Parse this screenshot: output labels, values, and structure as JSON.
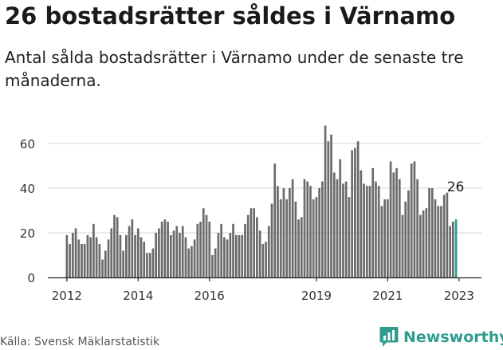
{
  "title": "26 bostadsrätter såldes i Värnamo",
  "subtitle": "Antal sålda bostadsrätter i Värnamo under de senaste tre månaderna.",
  "source": "Källa: Svensk Mäklarstatistik",
  "brand": {
    "name": "Newsworthy",
    "icon": "chat-chart-icon",
    "color": "#2e9d8e"
  },
  "chart_data": {
    "type": "bar",
    "title": "26 bostadsrätter såldes i Värnamo",
    "xlabel": "",
    "ylabel": "",
    "ylim": [
      0,
      70
    ],
    "yticks": [
      0,
      20,
      40,
      60
    ],
    "grid": true,
    "start": "2012-01",
    "xtick_labels": [
      "2012",
      "2014",
      "2016",
      "2019",
      "2021",
      "2023"
    ],
    "xtick_years": [
      2012,
      2014,
      2016,
      2019,
      2021,
      2023
    ],
    "bar_color": "#6b6b6b",
    "highlight_color": "#2a9d8f",
    "highlight_label": "26",
    "values": [
      19,
      15,
      20,
      22,
      17,
      15,
      15,
      19,
      18,
      24,
      18,
      15,
      8,
      12,
      17,
      22,
      28,
      27,
      19,
      12,
      19,
      23,
      26,
      19,
      22,
      18,
      16,
      11,
      11,
      13,
      20,
      22,
      25,
      26,
      25,
      19,
      21,
      23,
      20,
      23,
      18,
      13,
      14,
      17,
      24,
      25,
      31,
      28,
      25,
      10,
      13,
      20,
      24,
      18,
      17,
      20,
      24,
      19,
      19,
      19,
      24,
      28,
      31,
      31,
      27,
      21,
      15,
      16,
      23,
      33,
      51,
      41,
      35,
      40,
      35,
      40,
      44,
      34,
      26,
      27,
      44,
      43,
      41,
      35,
      36,
      40,
      43,
      68,
      61,
      64,
      47,
      44,
      53,
      42,
      43,
      36,
      57,
      58,
      61,
      48,
      42,
      41,
      41,
      49,
      43,
      41,
      32,
      35,
      35,
      52,
      47,
      49,
      44,
      28,
      34,
      39,
      51,
      52,
      44,
      28,
      30,
      31,
      40,
      40,
      35,
      32,
      32,
      37,
      38,
      23,
      25,
      26
    ]
  }
}
